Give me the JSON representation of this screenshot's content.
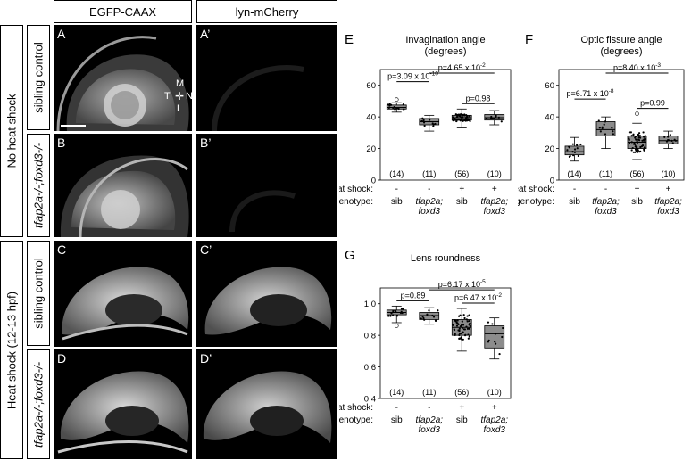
{
  "columns": {
    "egfp": "EGFP-CAAX",
    "lyn": "lyn-mCherry"
  },
  "rows": {
    "group_no_heat": "No heat shock",
    "group_heat": "Heat shock (12-13 hpf)",
    "r1": "sibling control",
    "r2": "tfap2a-/-;foxd3-/-",
    "r3": "sibling control",
    "r4": "tfap2a-/-;foxd3-/-"
  },
  "panel_labels": [
    "A",
    "A’",
    "B",
    "B’",
    "C",
    "C’",
    "D",
    "D’"
  ],
  "compass": {
    "top": "M",
    "left": "T",
    "right": "N",
    "bottom": "L"
  },
  "figure_labels": {
    "E": "E",
    "F": "F",
    "G": "G"
  },
  "row_labels": {
    "heat_shock": "heat shock:",
    "genotype": "genotype:"
  },
  "chart_data": [
    {
      "id": "E",
      "type": "box",
      "title": "Invagination angle",
      "subtitle": "(degrees)",
      "ylim": [
        0,
        70
      ],
      "yticks": [
        0,
        20,
        40,
        60
      ],
      "categories": [
        "sib",
        "tfap2a; foxd3",
        "sib",
        "tfap2a; foxd3"
      ],
      "heat_shock": [
        "-",
        "-",
        "+",
        "+"
      ],
      "n": [
        "(14)",
        "(11)",
        "(56)",
        "(10)"
      ],
      "boxes": [
        {
          "min": 43,
          "q1": 45,
          "median": 46,
          "q3": 47.5,
          "max": 49,
          "outliers": [
            51
          ]
        },
        {
          "min": 31,
          "q1": 35,
          "median": 37,
          "q3": 39,
          "max": 41,
          "outliers": []
        },
        {
          "min": 33,
          "q1": 38,
          "median": 39.5,
          "q3": 41,
          "max": 45,
          "outliers": []
        },
        {
          "min": 35,
          "q1": 38,
          "median": 39.5,
          "q3": 41.5,
          "max": 44,
          "outliers": []
        }
      ],
      "comparisons": [
        {
          "from": 0,
          "to": 1,
          "level": 1,
          "label": "p=3.09 x 10",
          "exp": "-10"
        },
        {
          "from": 1,
          "to": 3,
          "level": 2,
          "label": "p=4.65 x 10",
          "exp": "-2"
        },
        {
          "from": 2,
          "to": 3,
          "level": 0,
          "label": "p=0.98",
          "exp": ""
        }
      ]
    },
    {
      "id": "F",
      "type": "box",
      "title": "Optic fissure angle",
      "subtitle": "(degrees)",
      "ylim": [
        0,
        70
      ],
      "yticks": [
        0,
        20,
        40,
        60
      ],
      "categories": [
        "sib",
        "tfap2a; foxd3",
        "sib",
        "tfap2a; foxd3"
      ],
      "heat_shock": [
        "-",
        "-",
        "+",
        "+"
      ],
      "n": [
        "(14)",
        "(11)",
        "(56)",
        "(10)"
      ],
      "boxes": [
        {
          "min": 12,
          "q1": 16,
          "median": 18,
          "q3": 21.5,
          "max": 27,
          "outliers": []
        },
        {
          "min": 20,
          "q1": 28,
          "median": 32,
          "q3": 37,
          "max": 40,
          "outliers": []
        },
        {
          "min": 13,
          "q1": 20,
          "median": 24,
          "q3": 28,
          "max": 36,
          "outliers": [
            42
          ]
        },
        {
          "min": 20,
          "q1": 23,
          "median": 25,
          "q3": 28,
          "max": 31,
          "outliers": []
        }
      ],
      "comparisons": [
        {
          "from": 0,
          "to": 1,
          "level": 1,
          "label": "p=6.71 x 10",
          "exp": "-8"
        },
        {
          "from": 1,
          "to": 3,
          "level": 2,
          "label": "p=8.40 x 10",
          "exp": "-3"
        },
        {
          "from": 2,
          "to": 3,
          "level": 0,
          "label": "p=0.99",
          "exp": ""
        }
      ]
    },
    {
      "id": "G",
      "type": "box",
      "title": "Lens roundness",
      "subtitle": "",
      "ylim": [
        0.4,
        1.1
      ],
      "yticks": [
        0.4,
        0.6,
        0.8,
        1.0
      ],
      "categories": [
        "sib",
        "tfap2a; foxd3",
        "sib",
        "tfap2a; foxd3"
      ],
      "heat_shock": [
        "-",
        "-",
        "+",
        "+"
      ],
      "n": [
        "(14)",
        "(11)",
        "(56)",
        "(10)"
      ],
      "boxes": [
        {
          "min": 0.88,
          "q1": 0.93,
          "median": 0.945,
          "q3": 0.96,
          "max": 0.985,
          "outliers": [
            0.86
          ]
        },
        {
          "min": 0.87,
          "q1": 0.9,
          "median": 0.925,
          "q3": 0.945,
          "max": 0.975,
          "outliers": []
        },
        {
          "min": 0.7,
          "q1": 0.8,
          "median": 0.85,
          "q3": 0.9,
          "max": 0.97,
          "outliers": []
        },
        {
          "min": 0.65,
          "q1": 0.72,
          "median": 0.81,
          "q3": 0.86,
          "max": 0.91,
          "outliers": []
        }
      ],
      "comparisons": [
        {
          "from": 0,
          "to": 1,
          "level": 0,
          "label": "p=0.89",
          "exp": ""
        },
        {
          "from": 1,
          "to": 3,
          "level": 1,
          "label": "p=6.17 x 10",
          "exp": "-5"
        },
        {
          "from": 2,
          "to": 3,
          "level": 0,
          "label": "p=6.47 x 10",
          "exp": "-2"
        }
      ]
    }
  ]
}
